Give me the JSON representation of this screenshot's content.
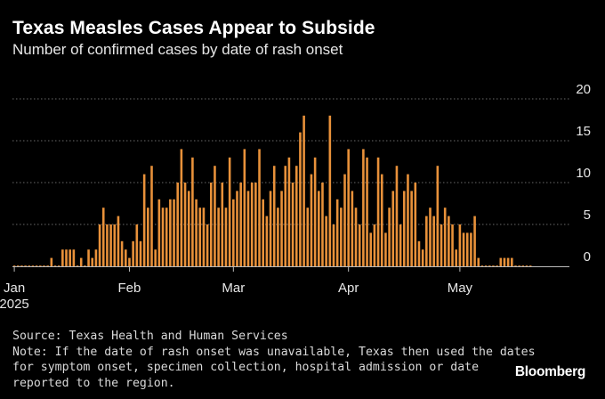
{
  "title": "Texas Measles Cases Appear to Subside",
  "subtitle": "Number of confirmed cases by date of rash onset",
  "source": "Source: Texas Health and Human Services",
  "note_lines": [
    "Note: If the date of rash onset was unavailable, Texas then used the dates",
    "for symptom onset, specimen collection, hospital admission or date",
    "reported to the region."
  ],
  "brand": "Bloomberg",
  "colors": {
    "bar": "#e8913a",
    "background": "#000000",
    "grid": "#6a6a6a",
    "baseline": "#bbbbbb",
    "text": "#ffffff"
  },
  "chart_data": {
    "type": "bar",
    "x_start": "2025-01-01",
    "x_end": "2025-05-31",
    "ylim": [
      0,
      20
    ],
    "y_ticks": [
      "20",
      "15",
      "10",
      "5",
      "0"
    ],
    "x_ticks": [
      {
        "date": "2025-01-01",
        "label": "Jan",
        "sublabel": "2025"
      },
      {
        "date": "2025-02-01",
        "label": "Feb",
        "sublabel": ""
      },
      {
        "date": "2025-03-01",
        "label": "Mar",
        "sublabel": ""
      },
      {
        "date": "2025-04-01",
        "label": "Apr",
        "sublabel": ""
      },
      {
        "date": "2025-05-01",
        "label": "May",
        "sublabel": ""
      }
    ],
    "grid": true,
    "legend": "none",
    "categories": [
      "2025-01-01",
      "2025-01-02",
      "2025-01-03",
      "2025-01-04",
      "2025-01-05",
      "2025-01-06",
      "2025-01-07",
      "2025-01-08",
      "2025-01-09",
      "2025-01-10",
      "2025-01-11",
      "2025-01-12",
      "2025-01-13",
      "2025-01-14",
      "2025-01-15",
      "2025-01-16",
      "2025-01-17",
      "2025-01-18",
      "2025-01-19",
      "2025-01-20",
      "2025-01-21",
      "2025-01-22",
      "2025-01-23",
      "2025-01-24",
      "2025-01-25",
      "2025-01-26",
      "2025-01-27",
      "2025-01-28",
      "2025-01-29",
      "2025-01-30",
      "2025-01-31",
      "2025-02-01",
      "2025-02-02",
      "2025-02-03",
      "2025-02-04",
      "2025-02-05",
      "2025-02-06",
      "2025-02-07",
      "2025-02-08",
      "2025-02-09",
      "2025-02-10",
      "2025-02-11",
      "2025-02-12",
      "2025-02-13",
      "2025-02-14",
      "2025-02-15",
      "2025-02-16",
      "2025-02-17",
      "2025-02-18",
      "2025-02-19",
      "2025-02-20",
      "2025-02-21",
      "2025-02-22",
      "2025-02-23",
      "2025-02-24",
      "2025-02-25",
      "2025-02-26",
      "2025-02-27",
      "2025-02-28",
      "2025-03-01",
      "2025-03-02",
      "2025-03-03",
      "2025-03-04",
      "2025-03-05",
      "2025-03-06",
      "2025-03-07",
      "2025-03-08",
      "2025-03-09",
      "2025-03-10",
      "2025-03-11",
      "2025-03-12",
      "2025-03-13",
      "2025-03-14",
      "2025-03-15",
      "2025-03-16",
      "2025-03-17",
      "2025-03-18",
      "2025-03-19",
      "2025-03-20",
      "2025-03-21",
      "2025-03-22",
      "2025-03-23",
      "2025-03-24",
      "2025-03-25",
      "2025-03-26",
      "2025-03-27",
      "2025-03-28",
      "2025-03-29",
      "2025-03-30",
      "2025-03-31",
      "2025-04-01",
      "2025-04-02",
      "2025-04-03",
      "2025-04-04",
      "2025-04-05",
      "2025-04-06",
      "2025-04-07",
      "2025-04-08",
      "2025-04-09",
      "2025-04-10",
      "2025-04-11",
      "2025-04-12",
      "2025-04-13",
      "2025-04-14",
      "2025-04-15",
      "2025-04-16",
      "2025-04-17",
      "2025-04-18",
      "2025-04-19",
      "2025-04-20",
      "2025-04-21",
      "2025-04-22",
      "2025-04-23",
      "2025-04-24",
      "2025-04-25",
      "2025-04-26",
      "2025-04-27",
      "2025-04-28",
      "2025-04-29",
      "2025-04-30",
      "2025-05-01",
      "2025-05-02",
      "2025-05-03",
      "2025-05-04",
      "2025-05-05",
      "2025-05-06",
      "2025-05-07",
      "2025-05-08",
      "2025-05-09",
      "2025-05-10",
      "2025-05-11",
      "2025-05-12",
      "2025-05-13",
      "2025-05-14",
      "2025-05-15",
      "2025-05-16",
      "2025-05-17",
      "2025-05-18",
      "2025-05-19",
      "2025-05-20"
    ],
    "values": [
      0,
      0,
      0,
      0,
      0,
      0,
      0,
      0,
      0,
      0,
      1,
      0,
      0,
      2,
      2,
      2,
      2,
      0,
      1,
      0,
      2,
      1,
      2,
      5,
      7,
      5,
      5,
      5,
      6,
      3,
      2,
      1,
      3,
      5,
      3,
      11,
      7,
      12,
      2,
      8,
      7,
      7,
      8,
      8,
      10,
      14,
      10,
      9,
      13,
      8,
      7,
      7,
      5,
      10,
      12,
      7,
      10,
      7,
      13,
      8,
      9,
      10,
      14,
      9,
      10,
      10,
      14,
      8,
      6,
      9,
      12,
      7,
      9,
      12,
      13,
      10,
      12,
      16,
      18,
      7,
      11,
      13,
      9,
      10,
      6,
      18,
      5,
      8,
      7,
      11,
      14,
      9,
      7,
      5,
      14,
      13,
      4,
      5,
      13,
      11,
      4,
      7,
      9,
      12,
      5,
      9,
      11,
      9,
      10,
      3,
      2,
      6,
      7,
      6,
      12,
      5,
      7,
      6,
      5,
      2,
      5,
      4,
      4,
      4,
      6,
      1,
      0,
      0,
      0,
      0,
      0,
      1,
      1,
      1,
      1,
      0,
      0,
      0,
      0,
      0
    ]
  }
}
